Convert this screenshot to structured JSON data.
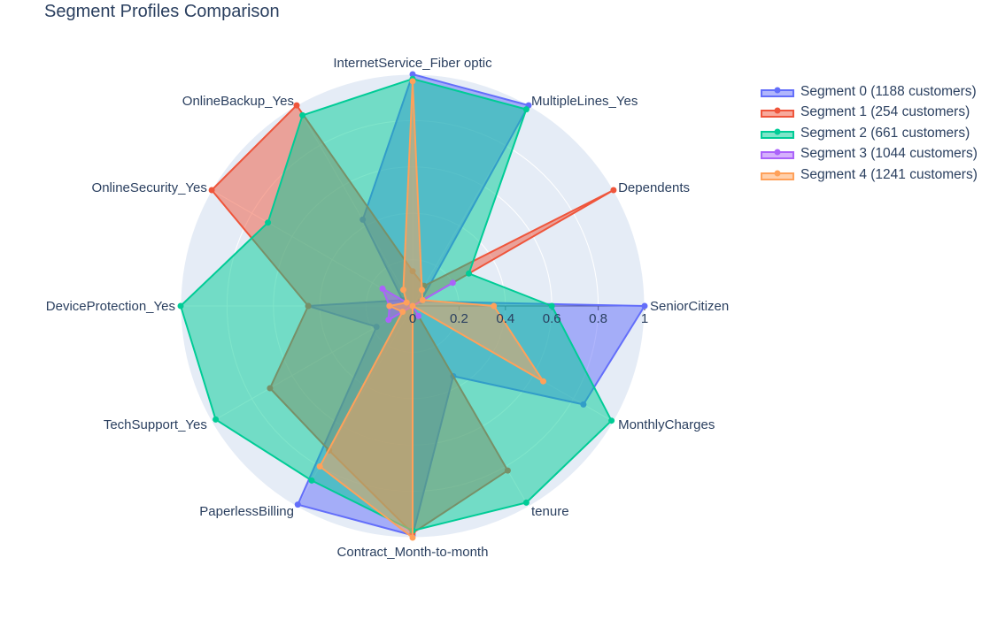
{
  "chart_data": {
    "type": "radar",
    "title": "Segment Profiles Comparison",
    "axes": [
      "SeniorCitizen",
      "Dependents",
      "MultipleLines_Yes",
      "InternetService_Fiber optic",
      "OnlineBackup_Yes",
      "OnlineSecurity_Yes",
      "DeviceProtection_Yes",
      "TechSupport_Yes",
      "PaperlessBilling",
      "Contract_Month-to-month",
      "tenure",
      "MonthlyCharges"
    ],
    "radial_range": [
      0,
      1
    ],
    "radial_ticks": [
      "0",
      "0.2",
      "0.4",
      "0.6",
      "0.8",
      "1"
    ],
    "legend_position": "top-right",
    "series": [
      {
        "name": "Segment 0 (1188 customers)",
        "color": "#636efa",
        "values": [
          1.0,
          0.04,
          1.0,
          1.0,
          0.43,
          0.05,
          0.45,
          0.18,
          0.99,
          0.99,
          0.35,
          0.85
        ]
      },
      {
        "name": "Segment 1 (254 customers)",
        "color": "#ef553b",
        "values": [
          0.0,
          1.0,
          0.1,
          0.15,
          1.0,
          1.0,
          0.45,
          0.71,
          0.72,
          0.98,
          0.82,
          0.0
        ]
      },
      {
        "name": "Segment 2 (661 customers)",
        "color": "#00cc96",
        "values": [
          0.6,
          0.28,
          0.98,
          0.98,
          0.95,
          0.72,
          1.0,
          0.98,
          0.87,
          0.97,
          0.98,
          0.99
        ]
      },
      {
        "name": "Segment 3 (1044 customers)",
        "color": "#ab63fa",
        "values": [
          0.0,
          0.2,
          0.0,
          0.0,
          0.0,
          0.15,
          0.1,
          0.12,
          0.0,
          0.0,
          0.05,
          0.0
        ]
      },
      {
        "name": "Segment 4 (1241 customers)",
        "color": "#ffa15a",
        "values": [
          0.35,
          0.05,
          0.08,
          0.97,
          0.08,
          0.03,
          0.1,
          0.05,
          0.8,
          1.0,
          0.0,
          0.65
        ]
      }
    ]
  }
}
